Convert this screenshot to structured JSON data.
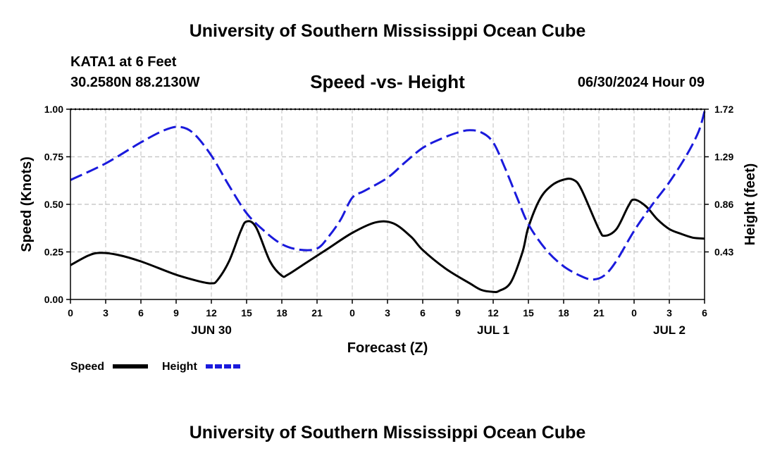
{
  "header": {
    "title_top": "University of Southern Mississippi Ocean Cube",
    "title_bottom": "University of Southern Mississippi Ocean Cube",
    "station": "KATA1 at 6 Feet",
    "coordinates": "30.2580N  88.2130W",
    "datetime": "06/30/2024 Hour 09"
  },
  "colors": {
    "speed": "#000000",
    "height": "#1a1adc",
    "grid": "#c8c8c8"
  },
  "chart_data": {
    "type": "line",
    "title": "Speed -vs- Height",
    "xlabel": "Forecast (Z)",
    "ylabel_left": "Speed (Knots)",
    "ylabel_right": "Height (feet)",
    "x_range": [
      0,
      54
    ],
    "x_ticks": [
      0,
      3,
      6,
      9,
      12,
      15,
      18,
      21,
      24,
      27,
      30,
      33,
      36,
      39,
      42,
      45,
      48,
      51,
      54
    ],
    "x_tick_labels": [
      "0",
      "3",
      "6",
      "9",
      "12",
      "15",
      "18",
      "21",
      "0",
      "3",
      "6",
      "9",
      "12",
      "15",
      "18",
      "21",
      "0",
      "3",
      "6"
    ],
    "day_labels": [
      {
        "label": "JUN 30",
        "x": 12
      },
      {
        "label": "JUL 1",
        "x": 36
      },
      {
        "label": "JUL 2",
        "x": 51
      }
    ],
    "y_left": {
      "range": [
        0,
        1
      ],
      "ticks": [
        0,
        0.25,
        0.5,
        0.75,
        1
      ],
      "tick_labels": [
        "0.00",
        "0.25",
        "0.50",
        "0.75",
        "1.00"
      ]
    },
    "y_right": {
      "range": [
        0,
        1.72
      ],
      "ticks": [
        0.43,
        0.86,
        1.29,
        1.72
      ],
      "tick_labels": [
        "0.43",
        "0.86",
        "1.29",
        "1.72"
      ]
    },
    "grid": true,
    "series": [
      {
        "name": "Speed",
        "axis": "left",
        "style": "solid",
        "x": [
          0,
          1.5,
          2.5,
          4,
          6,
          9,
          11,
          12,
          12.5,
          13.5,
          14.5,
          15,
          15.8,
          17,
          18,
          18.5,
          20,
          22,
          24,
          26,
          27.5,
          29,
          30,
          32,
          34,
          35,
          36,
          36.5,
          37.5,
          38.5,
          39,
          40,
          41,
          42,
          42.8,
          43.5,
          45,
          45.5,
          46.5,
          47.5,
          48,
          49,
          50,
          51,
          52,
          53,
          54
        ],
        "y": [
          0.18,
          0.23,
          0.245,
          0.235,
          0.2,
          0.13,
          0.095,
          0.085,
          0.1,
          0.2,
          0.36,
          0.41,
          0.38,
          0.2,
          0.125,
          0.13,
          0.19,
          0.27,
          0.35,
          0.405,
          0.4,
          0.33,
          0.26,
          0.16,
          0.085,
          0.05,
          0.04,
          0.045,
          0.09,
          0.25,
          0.38,
          0.53,
          0.6,
          0.63,
          0.63,
          0.58,
          0.37,
          0.335,
          0.37,
          0.49,
          0.525,
          0.49,
          0.42,
          0.37,
          0.345,
          0.325,
          0.32
        ]
      },
      {
        "name": "Height",
        "axis": "right",
        "style": "dashed",
        "x": [
          0,
          3,
          6,
          8,
          9.3,
          10.5,
          12,
          13.5,
          15,
          16.5,
          18,
          19.5,
          21,
          22,
          23,
          24,
          25,
          27,
          28.5,
          30,
          31.5,
          33,
          34,
          35,
          36,
          37,
          38,
          39,
          40.5,
          42,
          43.5,
          44.5,
          45.5,
          46.5,
          48,
          49.5,
          51,
          52.5,
          53.5,
          54
        ],
        "y": [
          1.08,
          1.23,
          1.42,
          1.53,
          1.56,
          1.5,
          1.3,
          1.03,
          0.78,
          0.62,
          0.5,
          0.45,
          0.46,
          0.57,
          0.72,
          0.92,
          0.98,
          1.1,
          1.24,
          1.37,
          1.45,
          1.51,
          1.53,
          1.51,
          1.42,
          1.19,
          0.93,
          0.68,
          0.45,
          0.3,
          0.21,
          0.18,
          0.22,
          0.35,
          0.62,
          0.85,
          1.06,
          1.31,
          1.52,
          1.7
        ]
      }
    ],
    "legend": [
      {
        "label": "Speed",
        "style": "solid"
      },
      {
        "label": "Height",
        "style": "dashed"
      }
    ],
    "legend_position": "bottom-left"
  }
}
